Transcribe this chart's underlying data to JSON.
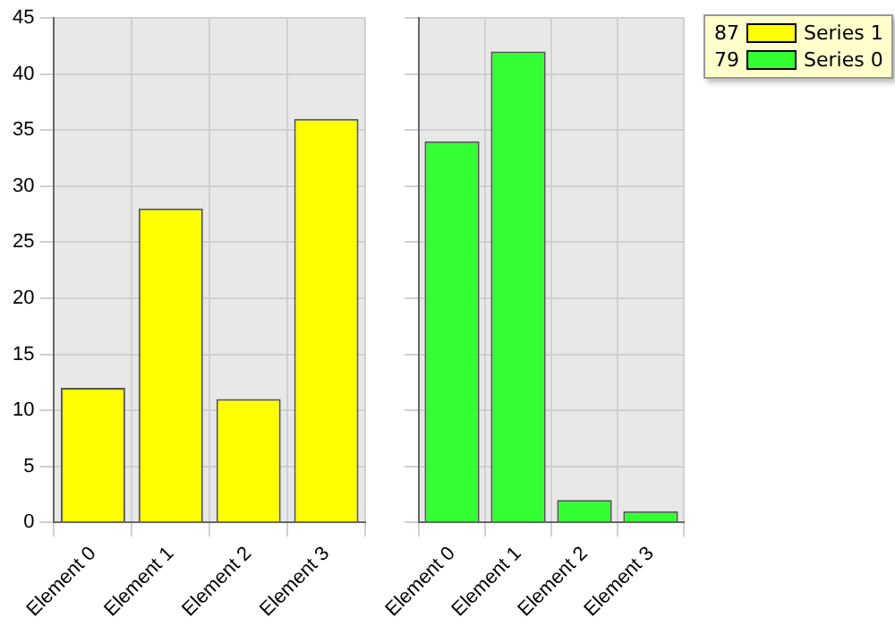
{
  "chart_data": [
    {
      "type": "bar",
      "categories": [
        "Element 0",
        "Element 1",
        "Element 2",
        "Element 3"
      ],
      "series": [
        {
          "name": "Series 1",
          "color": "#ffff00",
          "values": [
            12,
            28,
            11,
            36
          ]
        }
      ],
      "ylim": [
        0,
        45
      ],
      "yticks": [
        0,
        5,
        10,
        15,
        20,
        25,
        30,
        35,
        40,
        45
      ],
      "grid": true,
      "legend": "top right",
      "annotations": [
        "87"
      ]
    },
    {
      "type": "bar",
      "categories": [
        "Element 0",
        "Element 1",
        "Element 2",
        "Element 3"
      ],
      "series": [
        {
          "name": "Series 0",
          "color": "#33ff33",
          "values": [
            34,
            42,
            2,
            1
          ]
        }
      ],
      "ylim": [
        0,
        45
      ],
      "yticks": [
        0,
        5,
        10,
        15,
        20,
        25,
        30,
        35,
        40,
        45
      ],
      "grid": true,
      "legend": "top right",
      "tick_labels": "x",
      "annotations": [
        "79"
      ]
    }
  ]
}
